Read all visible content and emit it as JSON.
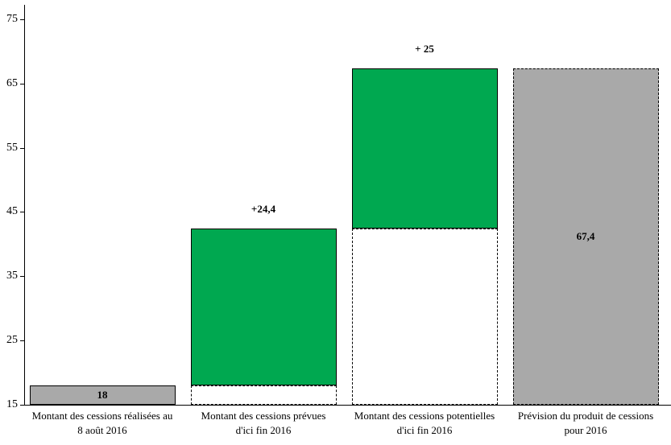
{
  "chart_data": {
    "type": "bar",
    "subtype": "waterfall",
    "title": "",
    "y_axis": {
      "min": 15,
      "max": 77,
      "ticks": [
        15,
        25,
        35,
        45,
        55,
        65,
        75
      ]
    },
    "colors": {
      "gray": "#a9a9a9",
      "green": "#00a850",
      "white": "#ffffff",
      "axis": "#000000"
    },
    "bars": [
      {
        "category_lines": [
          "Montant des cessions réalisées au",
          "8 août 2016"
        ],
        "segments": [
          {
            "from": 15,
            "to": 18,
            "fill": "gray",
            "border": "solid"
          }
        ],
        "value_label": {
          "text": "18",
          "position": "inside",
          "segment": 0
        }
      },
      {
        "category_lines": [
          "Montant des cessions prévues",
          "d'ici fin 2016"
        ],
        "segments": [
          {
            "from": 15,
            "to": 18,
            "fill": "white",
            "border": "dashed"
          },
          {
            "from": 18,
            "to": 42.4,
            "fill": "green",
            "border": "solid"
          }
        ],
        "value_label": {
          "text": "+24,4",
          "position": "above",
          "segment": 1
        }
      },
      {
        "category_lines": [
          "Montant des cessions potentielles",
          "d'ici fin 2016"
        ],
        "segments": [
          {
            "from": 15,
            "to": 42.4,
            "fill": "white",
            "border": "dashed"
          },
          {
            "from": 42.4,
            "to": 67.4,
            "fill": "green",
            "border": "solid"
          }
        ],
        "value_label": {
          "text": "+ 25",
          "position": "above",
          "segment": 1
        }
      },
      {
        "category_lines": [
          "Prévision du produit de cessions",
          "pour 2016"
        ],
        "segments": [
          {
            "from": 15,
            "to": 67.4,
            "fill": "gray",
            "border": "dashed"
          }
        ],
        "value_label": {
          "text": "67,4",
          "position": "inside",
          "segment": 0
        }
      }
    ]
  }
}
